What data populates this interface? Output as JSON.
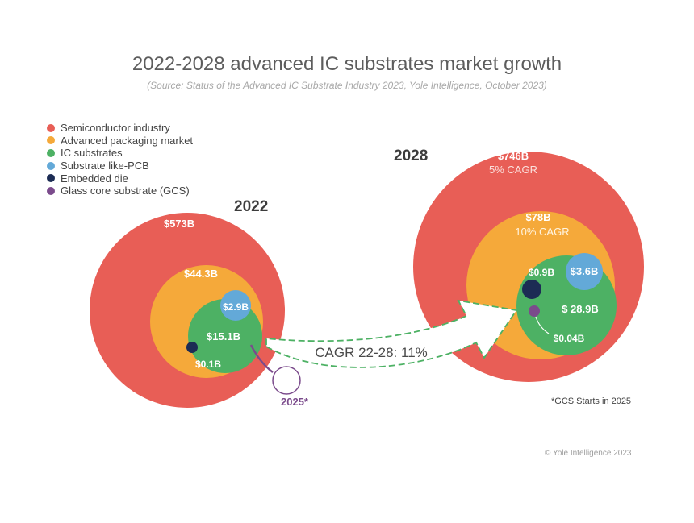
{
  "title": "2022-2028 advanced IC substrates market growth",
  "subtitle": "(Source: Status of the Advanced IC Substrate Industry 2023, Yole Intelligence, October 2023)",
  "legend": [
    {
      "label": "Semiconductor industry",
      "color": "#e85e56"
    },
    {
      "label": "Advanced packaging market",
      "color": "#f5a93a"
    },
    {
      "label": "IC substrates",
      "color": "#4db164"
    },
    {
      "label": "Substrate like-PCB",
      "color": "#63a9d8"
    },
    {
      "label": "Embedded die",
      "color": "#1c2c54"
    },
    {
      "label": "Glass core substrate (GCS)",
      "color": "#7b4b8c"
    }
  ],
  "chart_data": {
    "type": "bubble",
    "unit": "$B",
    "groups": [
      {
        "year": "2022",
        "segments": [
          {
            "name": "Semiconductor industry",
            "value": 573,
            "label": "$573B"
          },
          {
            "name": "Advanced packaging market",
            "value": 44.3,
            "label": "$44.3B"
          },
          {
            "name": "IC substrates",
            "value": 15.1,
            "label": "$15.1B"
          },
          {
            "name": "Substrate like-PCB",
            "value": 2.9,
            "label": "$2.9B"
          },
          {
            "name": "Embedded die",
            "value": 0.1,
            "label": "$0.1B"
          }
        ]
      },
      {
        "year": "2028",
        "segments": [
          {
            "name": "Semiconductor industry",
            "value": 746,
            "label": "$746B",
            "note": "5% CAGR"
          },
          {
            "name": "Advanced packaging market",
            "value": 78,
            "label": "$78B",
            "note": "10% CAGR"
          },
          {
            "name": "IC substrates",
            "value": 28.9,
            "label": "$ 28.9B"
          },
          {
            "name": "Substrate like-PCB",
            "value": 3.6,
            "label": "$3.6B"
          },
          {
            "name": "Embedded die",
            "value": 0.9,
            "label": "$0.9B"
          },
          {
            "name": "Glass core substrate (GCS)",
            "value": 0.04,
            "label": "$0.04B"
          }
        ]
      }
    ],
    "arrow_label": "CAGR 22-28: 11%",
    "gcs_start_label": "2025*",
    "footnote": "*GCS Starts in 2025"
  },
  "copyright": "© Yole Intelligence 2023"
}
